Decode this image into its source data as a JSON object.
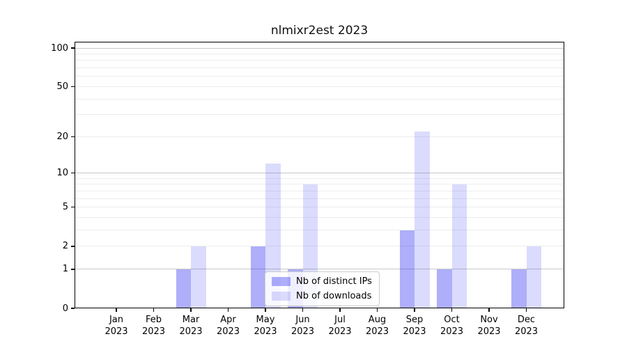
{
  "chart_data": {
    "type": "bar",
    "title": "nlmixr2est 2023",
    "categories": [
      "Jan",
      "Feb",
      "Mar",
      "Apr",
      "May",
      "Jun",
      "Jul",
      "Aug",
      "Sep",
      "Oct",
      "Nov",
      "Dec"
    ],
    "year_label": "2023",
    "series": [
      {
        "name": "Nb of distinct IPs",
        "color": "rgba(30, 30, 240, 0.36)",
        "values": [
          0,
          0,
          1,
          0,
          2,
          1,
          0,
          0,
          3,
          1,
          0,
          1
        ]
      },
      {
        "name": "Nb of downloads",
        "color": "rgba(30, 30, 240, 0.16)",
        "values": [
          0,
          0,
          2,
          0,
          12,
          8,
          0,
          0,
          22,
          8,
          0,
          2
        ]
      }
    ],
    "yscale": "log1p",
    "ylim": [
      0,
      100
    ],
    "ytick_labels": [
      100,
      50,
      20,
      10,
      5,
      2,
      1,
      0
    ],
    "major_gridlines": [
      1,
      10,
      100
    ],
    "minor_gridlines": [
      2,
      3,
      4,
      5,
      6,
      7,
      8,
      9,
      20,
      30,
      40,
      50,
      60,
      70,
      80,
      90
    ],
    "major_grid_color": "#c9c9c9",
    "minor_grid_color": "#ededed",
    "legend_position": "lower center",
    "grid": true
  }
}
